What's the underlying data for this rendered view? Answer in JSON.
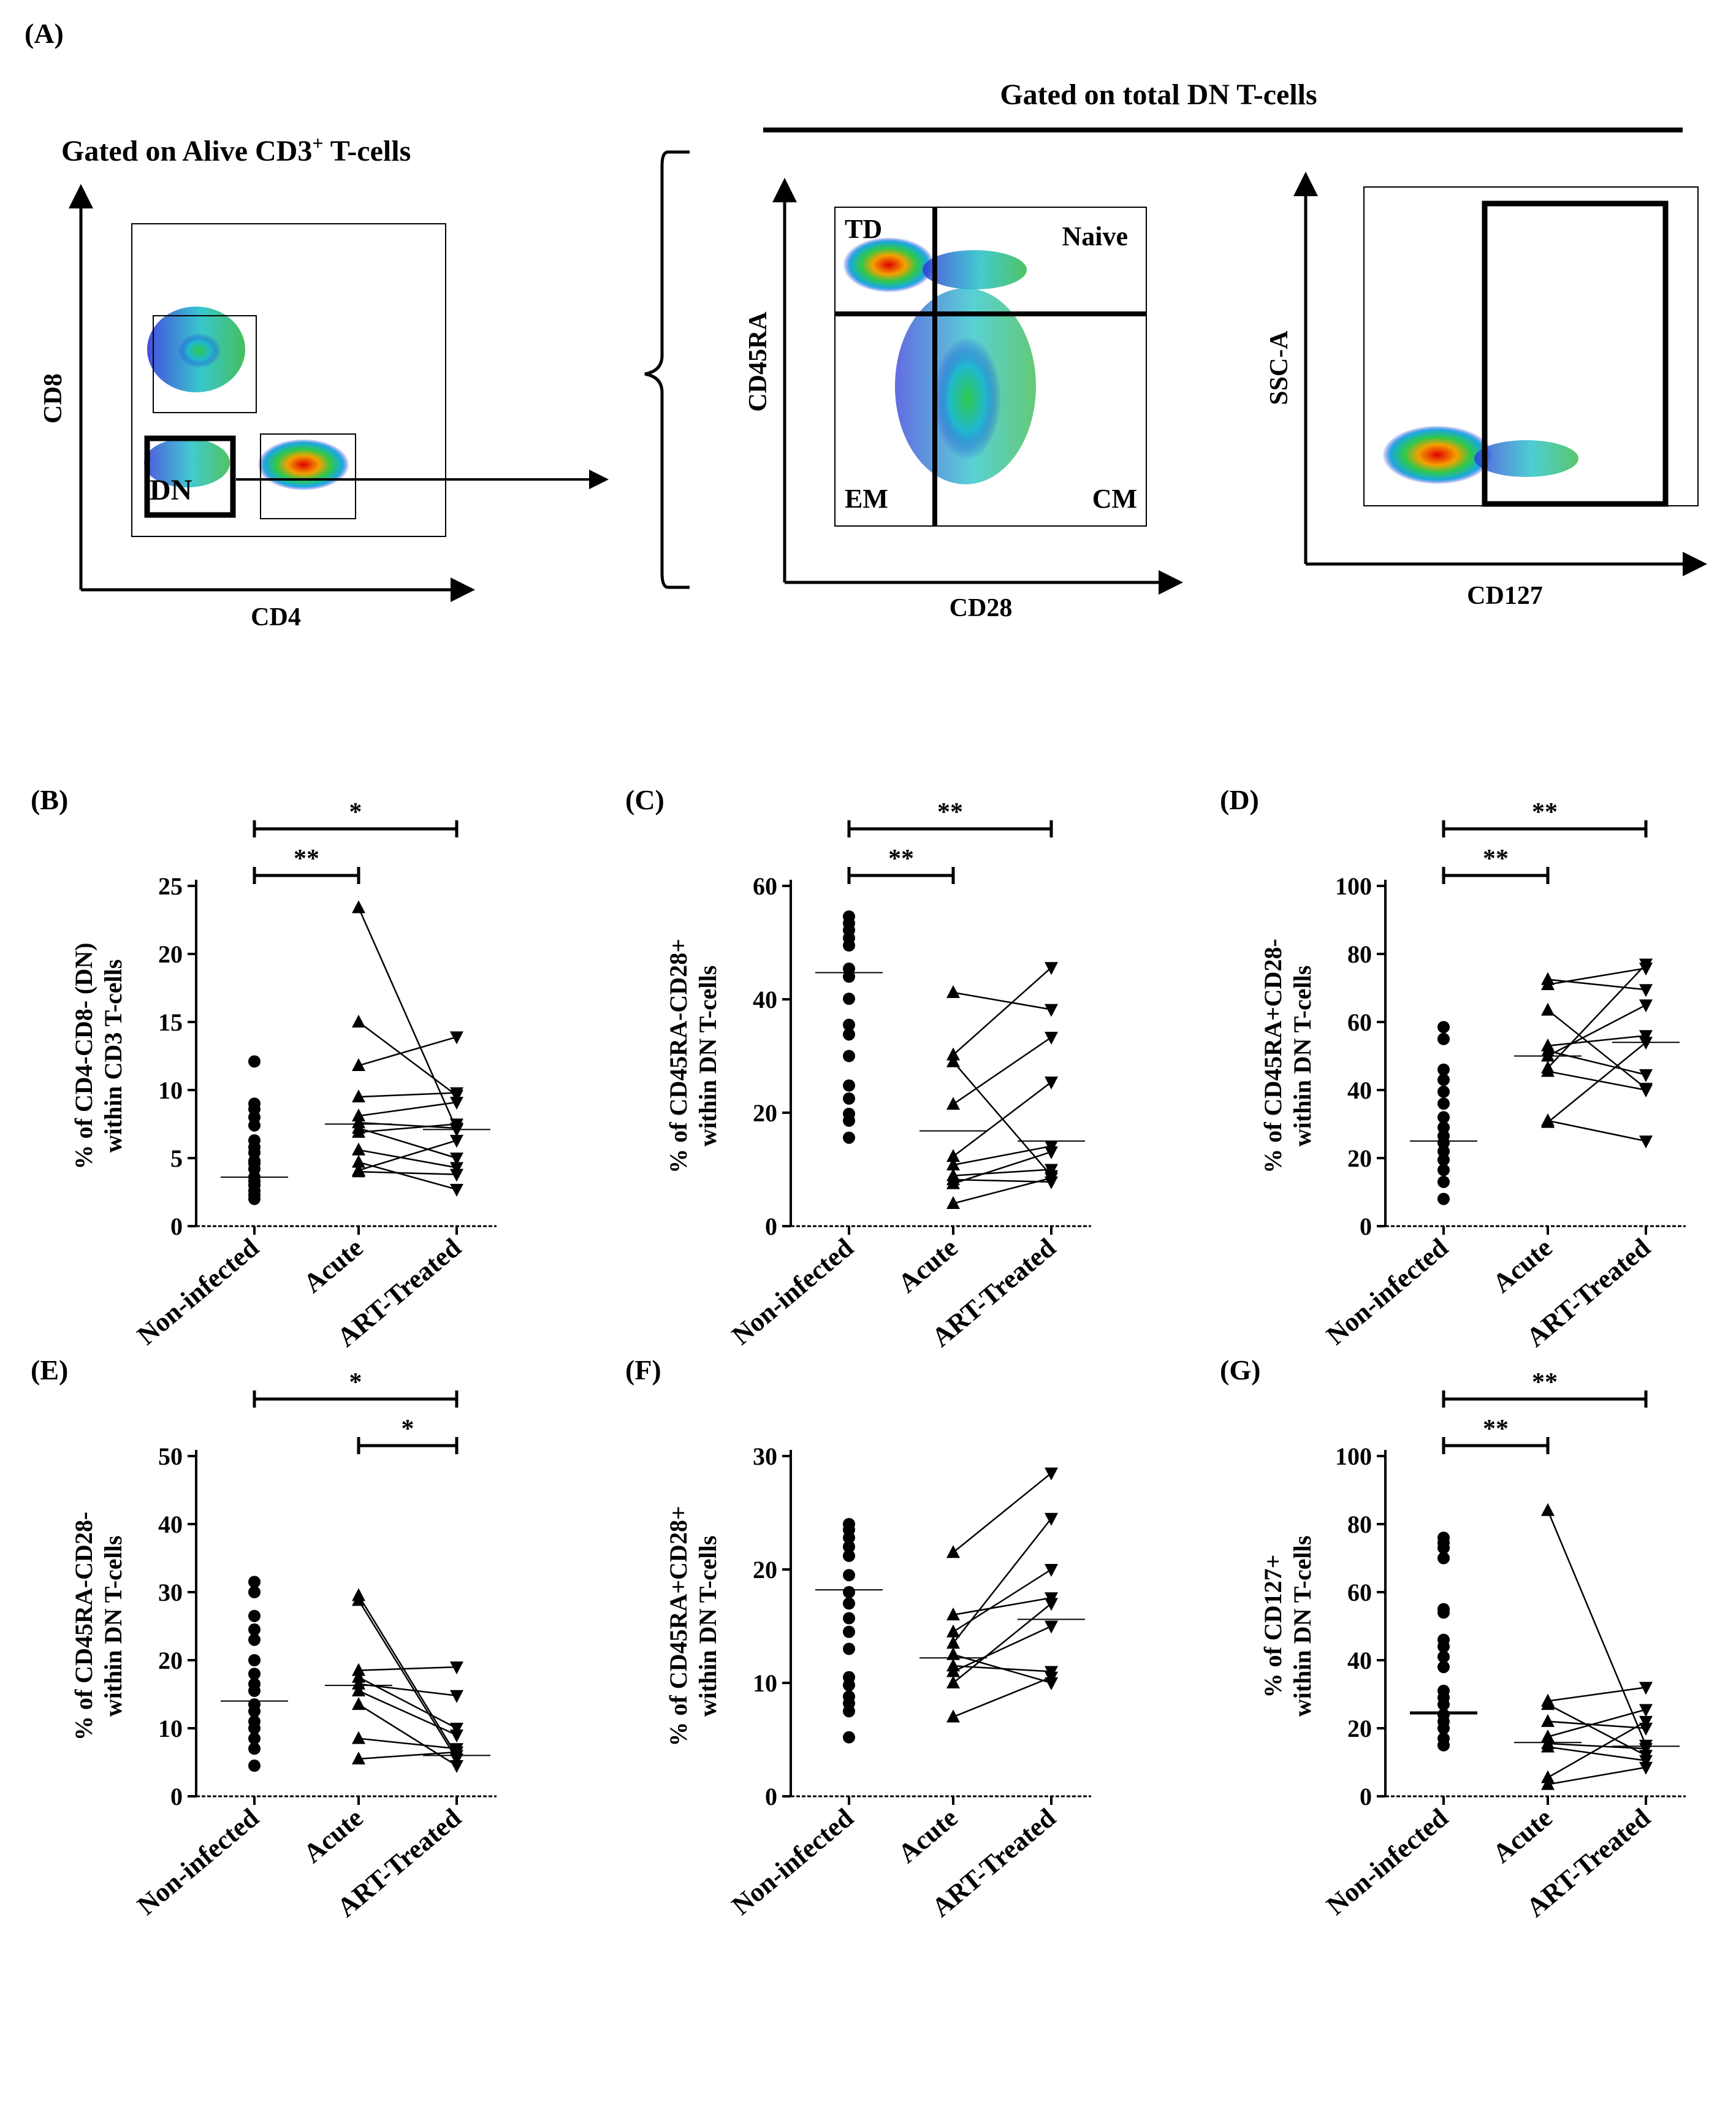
{
  "figure_title": "(A)",
  "flow": {
    "left_title": "Gated on Alive CD3",
    "left_title_sup": "+",
    "left_title_suffix": " T-cells",
    "right_title": "Gated on total DN T-cells",
    "p1": {
      "xlabel": "CD4",
      "ylabel": "CD8",
      "gate": "DN"
    },
    "p2": {
      "xlabel": "CD28",
      "ylabel": "CD45RA",
      "q_tl": "TD",
      "q_tr": "Naive",
      "q_bl": "EM",
      "q_br": "CM"
    },
    "p3": {
      "xlabel": "CD127",
      "ylabel": "SSC-A"
    }
  },
  "chart_data": [
    {
      "panel": "(B)",
      "type": "scatter",
      "ylabel_line1": "% of CD4-CD8- (DN)",
      "ylabel_line2": "within CD3 T-cells",
      "categories": [
        "Non-infected",
        "Acute",
        "ART-Treated"
      ],
      "ylim": [
        0,
        25
      ],
      "yticks": [
        0,
        5,
        10,
        15,
        20,
        25
      ],
      "noninfected": [
        12.1,
        9.0,
        8.6,
        8.0,
        7.4,
        6.3,
        5.8,
        5.4,
        4.8,
        4.6,
        4.2,
        3.6,
        3.3,
        3.0,
        2.6,
        2.3,
        2.0
      ],
      "pairs": [
        [
          23.4,
          7.1
        ],
        [
          15.0,
          9.6
        ],
        [
          11.8,
          13.9
        ],
        [
          9.5,
          9.8
        ],
        [
          8.1,
          9.1
        ],
        [
          7.6,
          7.2
        ],
        [
          7.2,
          5.0
        ],
        [
          6.9,
          7.5
        ],
        [
          5.6,
          4.3
        ],
        [
          4.7,
          2.7
        ],
        [
          4.1,
          6.3
        ],
        [
          4.0,
          3.8
        ]
      ],
      "medians": [
        3.6,
        7.5,
        7.1
      ],
      "sig": [
        {
          "label": "**",
          "from": 0,
          "to": 1
        },
        {
          "label": "*",
          "from": 0,
          "to": 2
        }
      ]
    },
    {
      "panel": "(C)",
      "type": "scatter",
      "ylabel_line1": "% of CD45RA-CD28+",
      "ylabel_line2": "within DN T-cells",
      "categories": [
        "Non-infected",
        "Acute",
        "ART-Treated"
      ],
      "ylim": [
        0,
        60
      ],
      "yticks": [
        0,
        20,
        40,
        60
      ],
      "noninfected": [
        54.6,
        53.4,
        52.2,
        50.8,
        49.5,
        45.4,
        44.0,
        40.1,
        35.5,
        33.8,
        30.0,
        24.8,
        22.5,
        19.8,
        18.6,
        15.6
      ],
      "pairs": [
        [
          41.2,
          38.2
        ],
        [
          30.2,
          45.6
        ],
        [
          29.0,
          8.9
        ],
        [
          21.5,
          33.3
        ],
        [
          12.3,
          25.4
        ],
        [
          10.8,
          14.1
        ],
        [
          8.9,
          10.0
        ],
        [
          8.2,
          7.8
        ],
        [
          7.5,
          13.1
        ],
        [
          4.0,
          8.5
        ]
      ],
      "medians": [
        44.7,
        16.8,
        15.0
      ],
      "sig": [
        {
          "label": "**",
          "from": 0,
          "to": 1
        },
        {
          "label": "**",
          "from": 0,
          "to": 2
        }
      ]
    },
    {
      "panel": "(D)",
      "type": "scatter",
      "ylabel_line1": "% of CD45RA+CD28-",
      "ylabel_line2": "within DN T-cells",
      "categories": [
        "Non-infected",
        "Acute",
        "ART-Treated"
      ],
      "ylim": [
        0,
        100
      ],
      "yticks": [
        0,
        20,
        40,
        60,
        80,
        100
      ],
      "noninfected": [
        58.5,
        55.0,
        46.0,
        43.0,
        39.5,
        36.0,
        32.0,
        29.0,
        26.5,
        24.5,
        22.0,
        19.5,
        16.5,
        13.0,
        8.0
      ],
      "pairs": [
        [
          72.5,
          69.5
        ],
        [
          71.0,
          75.8
        ],
        [
          63.5,
          40.5
        ],
        [
          53.0,
          56.0
        ],
        [
          51.5,
          44.5
        ],
        [
          50.0,
          65.0
        ],
        [
          46.5,
          77.0
        ],
        [
          45.5,
          40.0
        ],
        [
          31.0,
          25.0
        ],
        [
          30.5,
          54.0
        ]
      ],
      "medians": [
        25.0,
        50.0,
        54.0
      ],
      "sig": [
        {
          "label": "**",
          "from": 0,
          "to": 1
        },
        {
          "label": "**",
          "from": 0,
          "to": 2
        }
      ]
    },
    {
      "panel": "(E)",
      "type": "scatter",
      "ylabel_line1": "% of CD45RA-CD28-",
      "ylabel_line2": "within DN T-cells",
      "categories": [
        "Non-infected",
        "Acute",
        "ART-Treated"
      ],
      "ylim": [
        0,
        50
      ],
      "yticks": [
        0,
        10,
        20,
        30,
        40,
        50
      ],
      "noninfected": [
        31.5,
        30.0,
        26.5,
        24.5,
        23.0,
        20.0,
        18.0,
        16.5,
        15.5,
        13.5,
        12.5,
        11.0,
        10.0,
        8.5,
        7.0,
        4.5
      ],
      "pairs": [
        [
          29.5,
          6.0
        ],
        [
          28.8,
          5.5
        ],
        [
          18.5,
          19.0
        ],
        [
          17.5,
          10.0
        ],
        [
          16.5,
          14.8
        ],
        [
          15.5,
          9.0
        ],
        [
          13.5,
          4.5
        ],
        [
          8.5,
          7.0
        ],
        [
          5.5,
          6.5
        ]
      ],
      "medians": [
        14.0,
        16.3,
        6.0
      ],
      "sig": [
        {
          "label": "*",
          "from": 1,
          "to": 2
        },
        {
          "label": "*",
          "from": 0,
          "to": 2
        }
      ]
    },
    {
      "panel": "(F)",
      "type": "scatter",
      "ylabel_line1": "% of CD45RA+CD28+",
      "ylabel_line2": "within DN T-cells",
      "categories": [
        "Non-infected",
        "Acute",
        "ART-Treated"
      ],
      "ylim": [
        0,
        30
      ],
      "yticks": [
        0,
        10,
        20,
        30
      ],
      "noninfected": [
        24.0,
        23.5,
        22.8,
        22.0,
        21.2,
        19.5,
        18.0,
        17.0,
        15.7,
        14.5,
        13.0,
        10.5,
        9.8,
        8.8,
        8.2,
        7.5,
        5.2
      ],
      "pairs": [
        [
          21.5,
          28.5
        ],
        [
          16.0,
          17.5
        ],
        [
          14.5,
          20.0
        ],
        [
          13.5,
          24.5
        ],
        [
          12.5,
          10.0
        ],
        [
          11.5,
          11.0
        ],
        [
          11.0,
          15.0
        ],
        [
          10.0,
          17.0
        ],
        [
          7.0,
          10.5
        ]
      ],
      "medians": [
        18.2,
        12.2,
        15.6
      ],
      "sig": []
    },
    {
      "panel": "(G)",
      "type": "scatter",
      "ylabel_line1": "% of CD127+",
      "ylabel_line2": "within DN T-cells",
      "categories": [
        "Non-infected",
        "Acute",
        "ART-Treated"
      ],
      "ylim": [
        0,
        100
      ],
      "yticks": [
        0,
        20,
        40,
        60,
        80,
        100
      ],
      "noninfected": [
        76.0,
        74.5,
        73.0,
        70.0,
        55.0,
        54.0,
        46.0,
        44.0,
        41.0,
        38.0,
        31.0,
        29.0,
        27.0,
        24.0,
        22.0,
        20.0,
        17.0,
        15.0
      ],
      "pairs": [
        [
          84.0,
          15.0
        ],
        [
          28.0,
          32.0
        ],
        [
          27.0,
          12.0
        ],
        [
          22.0,
          20.0
        ],
        [
          17.5,
          25.5
        ],
        [
          15.5,
          14.0
        ],
        [
          14.5,
          10.5
        ],
        [
          5.5,
          22.0
        ],
        [
          3.5,
          8.5
        ]
      ],
      "medians": [
        24.5,
        15.8,
        14.7
      ],
      "sig": [
        {
          "label": "**",
          "from": 0,
          "to": 1
        },
        {
          "label": "**",
          "from": 0,
          "to": 2
        }
      ]
    }
  ]
}
